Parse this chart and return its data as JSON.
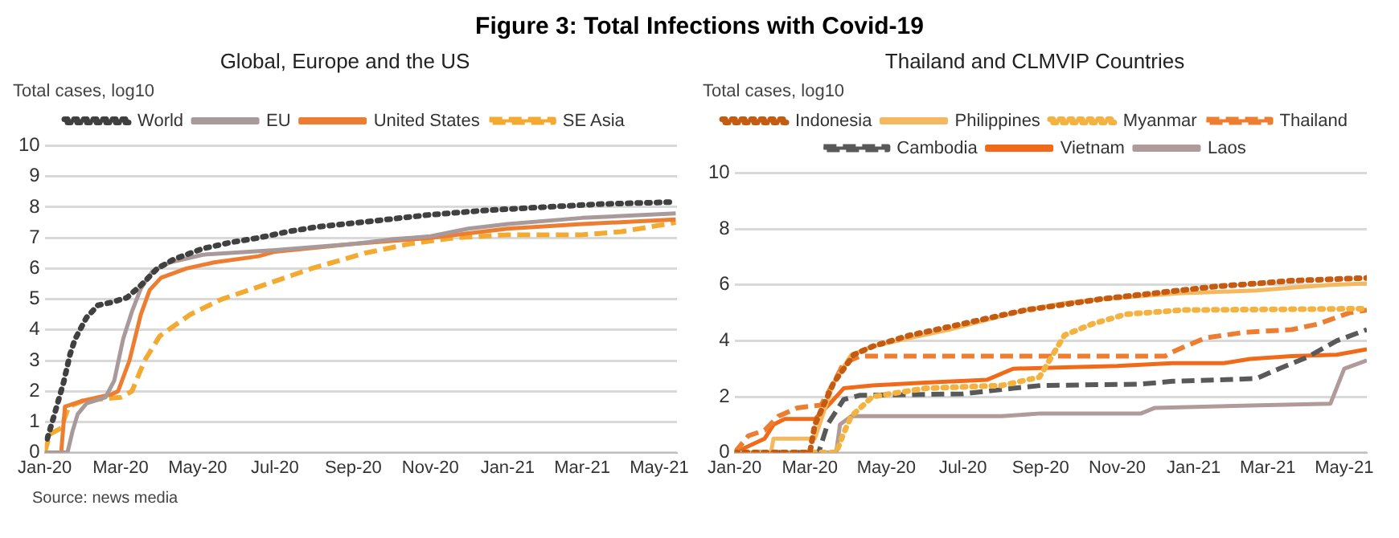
{
  "chart_data": [
    {
      "type": "line",
      "title": "Figure 3: Total Infections with Covid-19",
      "subtitle": "Global, Europe and the US",
      "ylabel": "Total cases, log10",
      "annotations": [
        "Source: news media"
      ],
      "xlim": [
        "2020-01-01",
        "2021-05-15"
      ],
      "xticks": [
        {
          "value": "2020-01-01",
          "label": "Jan-20"
        },
        {
          "value": "2020-03-01",
          "label": "Mar-20"
        },
        {
          "value": "2020-05-01",
          "label": "May-20"
        },
        {
          "value": "2020-07-01",
          "label": "Jul-20"
        },
        {
          "value": "2020-09-01",
          "label": "Sep-20"
        },
        {
          "value": "2020-11-01",
          "label": "Nov-20"
        },
        {
          "value": "2021-01-01",
          "label": "Jan-21"
        },
        {
          "value": "2021-03-01",
          "label": "Mar-21"
        },
        {
          "value": "2021-05-01",
          "label": "May-21"
        }
      ],
      "ylim": [
        0,
        10
      ],
      "yticks": [
        0,
        1,
        2,
        3,
        4,
        5,
        6,
        7,
        8,
        9,
        10
      ],
      "grid": "y",
      "legend": "top",
      "marker": "none",
      "series": [
        {
          "name": "World",
          "color": "#404040",
          "line_style": "dotted",
          "x": [
            "2020-01-03",
            "2020-01-08",
            "2020-01-16",
            "2020-01-21",
            "2020-01-25",
            "2020-02-03",
            "2020-02-12",
            "2020-02-23",
            "2020-03-06",
            "2020-03-17",
            "2020-03-30",
            "2020-04-12",
            "2020-05-05",
            "2020-05-27",
            "2020-06-18",
            "2020-07-11",
            "2020-08-02",
            "2020-09-17",
            "2020-10-31",
            "2020-12-16",
            "2021-01-29",
            "2021-03-15",
            "2021-05-14"
          ],
          "values": [
            0.45,
            1.15,
            2.3,
            3.2,
            3.7,
            4.4,
            4.8,
            4.9,
            5.05,
            5.45,
            6.0,
            6.3,
            6.65,
            6.85,
            7.0,
            7.2,
            7.35,
            7.55,
            7.75,
            7.9,
            8.0,
            8.1,
            8.17
          ]
        },
        {
          "name": "EU",
          "color": "#a89a9a",
          "line_style": "solid",
          "x": [
            "2020-01-01",
            "2020-01-19",
            "2020-01-23",
            "2020-01-27",
            "2020-02-03",
            "2020-02-18",
            "2020-02-25",
            "2020-03-03",
            "2020-03-10",
            "2020-03-17",
            "2020-03-26",
            "2020-04-09",
            "2020-05-05",
            "2020-07-01",
            "2020-09-01",
            "2020-10-01",
            "2020-11-01",
            "2020-12-01",
            "2021-01-01",
            "2021-03-01",
            "2021-05-14"
          ],
          "values": [
            0,
            0,
            0.7,
            1.25,
            1.6,
            1.8,
            2.35,
            3.7,
            4.6,
            5.35,
            5.9,
            6.2,
            6.45,
            6.6,
            6.8,
            6.95,
            7.05,
            7.3,
            7.45,
            7.65,
            7.8
          ]
        },
        {
          "name": "United States",
          "color": "#ed7d31",
          "line_style": "solid",
          "x": [
            "2020-01-01",
            "2020-01-14",
            "2020-01-17",
            "2020-02-01",
            "2020-02-23",
            "2020-02-28",
            "2020-03-08",
            "2020-03-17",
            "2020-03-24",
            "2020-04-02",
            "2020-04-22",
            "2020-05-14",
            "2020-06-18",
            "2020-07-01",
            "2020-09-01",
            "2020-11-01",
            "2021-01-01",
            "2021-03-01",
            "2021-05-14"
          ],
          "values": [
            0,
            0,
            1.5,
            1.7,
            1.9,
            2.0,
            3.0,
            4.5,
            5.3,
            5.7,
            6.0,
            6.2,
            6.4,
            6.55,
            6.8,
            7.0,
            7.3,
            7.45,
            7.6
          ]
        },
        {
          "name": "SE Asia",
          "color": "#f4a930",
          "line_style": "dashed",
          "x": [
            "2020-01-01",
            "2020-01-05",
            "2020-01-14",
            "2020-01-20",
            "2020-02-01",
            "2020-03-01",
            "2020-03-10",
            "2020-03-20",
            "2020-04-01",
            "2020-04-25",
            "2020-05-20",
            "2020-06-25",
            "2020-07-30",
            "2020-09-10",
            "2020-10-15",
            "2020-11-20",
            "2021-01-01",
            "2021-03-01",
            "2021-04-01",
            "2021-05-14"
          ],
          "values": [
            0,
            0.6,
            0.8,
            1.5,
            1.7,
            1.8,
            2.0,
            3.0,
            3.8,
            4.5,
            5.0,
            5.5,
            6.0,
            6.5,
            6.8,
            7.0,
            7.1,
            7.1,
            7.2,
            7.5
          ]
        }
      ]
    },
    {
      "type": "line",
      "subtitle": "Thailand and CLMVIP Countries",
      "ylabel": "Total cases, log10",
      "xlim": [
        "2020-01-01",
        "2021-05-19"
      ],
      "xticks": [
        {
          "value": "2020-01-01",
          "label": "Jan-20"
        },
        {
          "value": "2020-03-01",
          "label": "Mar-20"
        },
        {
          "value": "2020-05-01",
          "label": "May-20"
        },
        {
          "value": "2020-07-01",
          "label": "Jul-20"
        },
        {
          "value": "2020-09-01",
          "label": "Sep-20"
        },
        {
          "value": "2020-11-01",
          "label": "Nov-20"
        },
        {
          "value": "2021-01-01",
          "label": "Jan-21"
        },
        {
          "value": "2021-03-01",
          "label": "Mar-21"
        },
        {
          "value": "2021-05-01",
          "label": "May-21"
        }
      ],
      "ylim": [
        0,
        10
      ],
      "yticks": [
        0,
        2,
        4,
        6,
        8,
        10
      ],
      "grid": "y",
      "legend": "top",
      "marker": "none",
      "series": [
        {
          "name": "Indonesia",
          "color": "#c55a11",
          "line_style": "dotted",
          "x": [
            "2020-01-01",
            "2020-03-01",
            "2020-03-05",
            "2020-03-20",
            "2020-04-05",
            "2020-04-20",
            "2020-05-20",
            "2020-06-20",
            "2020-07-20",
            "2020-08-20",
            "2020-09-20",
            "2020-10-20",
            "2020-11-20",
            "2020-12-20",
            "2021-01-20",
            "2021-02-20",
            "2021-03-20",
            "2021-04-20",
            "2021-05-19"
          ],
          "values": [
            0,
            0,
            1.0,
            2.5,
            3.5,
            3.8,
            4.2,
            4.5,
            4.8,
            5.1,
            5.3,
            5.5,
            5.65,
            5.8,
            5.95,
            6.05,
            6.15,
            6.2,
            6.25
          ]
        },
        {
          "name": "Philippines",
          "color": "#f4b860",
          "line_style": "solid",
          "x": [
            "2020-01-01",
            "2020-01-30",
            "2020-02-01",
            "2020-03-05",
            "2020-03-20",
            "2020-04-03",
            "2020-04-20",
            "2020-05-20",
            "2020-06-20",
            "2020-07-20",
            "2020-08-20",
            "2020-09-20",
            "2020-10-20",
            "2020-11-20",
            "2020-12-20",
            "2021-01-20",
            "2021-02-20",
            "2021-03-20",
            "2021-04-20",
            "2021-05-19"
          ],
          "values": [
            0,
            0,
            0.5,
            0.5,
            2.5,
            3.5,
            3.8,
            4.1,
            4.4,
            4.75,
            5.1,
            5.35,
            5.5,
            5.6,
            5.7,
            5.75,
            5.8,
            5.9,
            6.0,
            6.05
          ]
        },
        {
          "name": "Myanmar",
          "color": "#f4b340",
          "line_style": "dotted",
          "x": [
            "2020-01-01",
            "2020-03-22",
            "2020-03-28",
            "2020-04-03",
            "2020-04-20",
            "2020-06-01",
            "2020-08-01",
            "2020-08-31",
            "2020-09-20",
            "2020-10-12",
            "2020-11-08",
            "2020-12-23",
            "2021-05-19"
          ],
          "values": [
            0,
            0,
            0.7,
            1.3,
            2.0,
            2.3,
            2.4,
            2.7,
            4.2,
            4.6,
            4.95,
            5.1,
            5.15
          ]
        },
        {
          "name": "Thailand",
          "color": "#ed7d31",
          "line_style": "dashed",
          "x": [
            "2020-01-01",
            "2020-01-12",
            "2020-01-25",
            "2020-02-05",
            "2020-02-20",
            "2020-03-10",
            "2020-03-20",
            "2020-03-28",
            "2020-04-10",
            "2020-12-09",
            "2020-12-15",
            "2021-01-10",
            "2021-02-10",
            "2021-03-20",
            "2021-04-10",
            "2021-05-05",
            "2021-05-19"
          ],
          "values": [
            0,
            0.6,
            0.8,
            1.3,
            1.6,
            1.7,
            2.5,
            3.2,
            3.45,
            3.45,
            3.6,
            4.1,
            4.3,
            4.4,
            4.6,
            5.0,
            5.1
          ]
        },
        {
          "name": "Cambodia",
          "color": "#595959",
          "line_style": "dashed",
          "x": [
            "2020-01-01",
            "2020-03-08",
            "2020-03-15",
            "2020-03-28",
            "2020-04-10",
            "2020-07-01",
            "2020-08-10",
            "2020-09-01",
            "2020-11-20",
            "2020-12-15",
            "2021-01-20",
            "2021-02-20",
            "2021-03-10",
            "2021-04-01",
            "2021-04-25",
            "2021-05-19"
          ],
          "values": [
            0,
            0,
            1.0,
            1.9,
            2.05,
            2.1,
            2.3,
            2.4,
            2.45,
            2.55,
            2.6,
            2.65,
            3.0,
            3.4,
            4.0,
            4.4
          ]
        },
        {
          "name": "Vietnam",
          "color": "#f06a1a",
          "line_style": "solid",
          "x": [
            "2020-01-01",
            "2020-01-25",
            "2020-02-01",
            "2020-02-10",
            "2020-03-05",
            "2020-03-18",
            "2020-03-28",
            "2020-04-20",
            "2020-06-01",
            "2020-07-20",
            "2020-08-10",
            "2020-09-20",
            "2020-11-01",
            "2020-12-15",
            "2021-01-25",
            "2021-02-15",
            "2021-03-20",
            "2021-04-25",
            "2021-05-19"
          ],
          "values": [
            0,
            0.5,
            1.0,
            1.2,
            1.2,
            1.8,
            2.3,
            2.4,
            2.5,
            2.6,
            3.0,
            3.05,
            3.1,
            3.2,
            3.2,
            3.35,
            3.45,
            3.5,
            3.7
          ]
        },
        {
          "name": "Laos",
          "color": "#b09a9a",
          "line_style": "solid",
          "x": [
            "2020-01-01",
            "2020-03-22",
            "2020-03-25",
            "2020-04-03",
            "2020-08-01",
            "2020-09-01",
            "2020-11-20",
            "2020-12-01",
            "2021-03-01",
            "2021-04-20",
            "2021-05-01",
            "2021-05-19"
          ],
          "values": [
            0,
            0,
            1.0,
            1.3,
            1.3,
            1.4,
            1.4,
            1.6,
            1.7,
            1.75,
            3.0,
            3.3
          ]
        }
      ]
    }
  ]
}
